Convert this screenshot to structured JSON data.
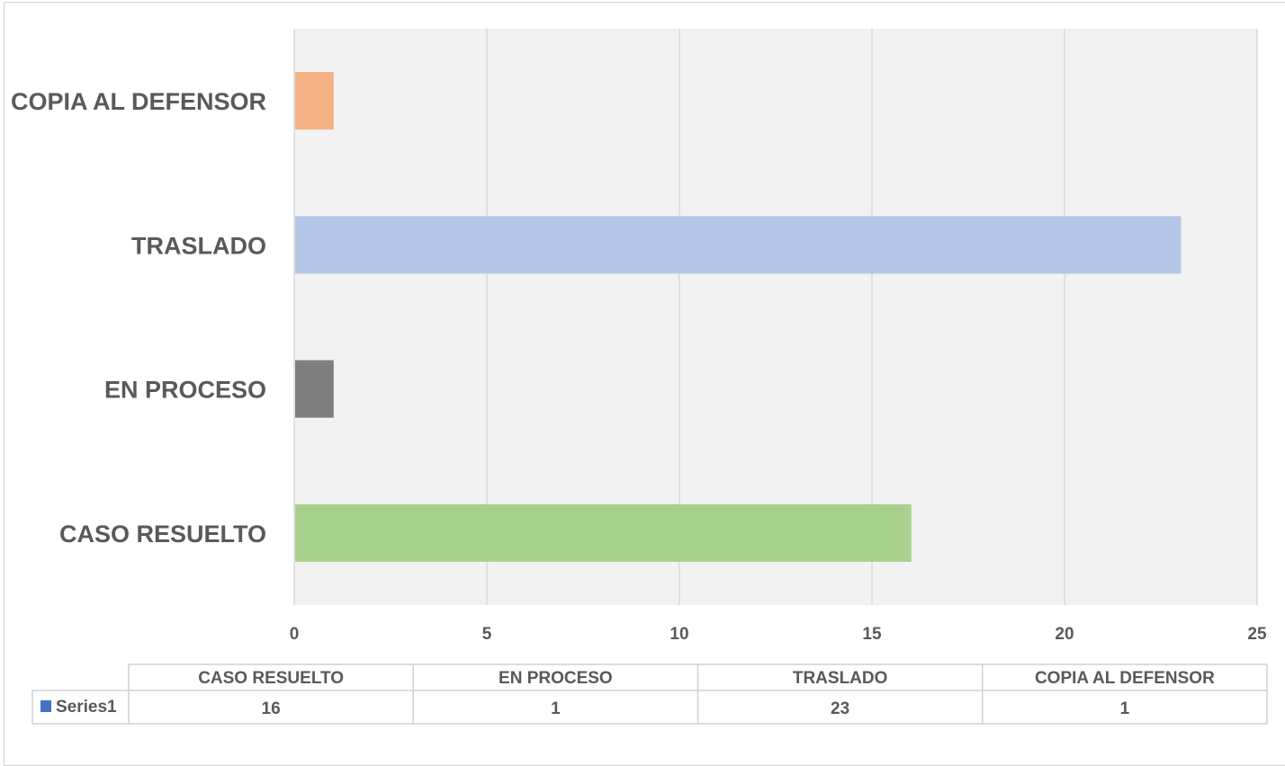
{
  "chart_data": {
    "type": "bar",
    "orientation": "horizontal",
    "categories": [
      "CASO RESUELTO",
      "EN PROCESO",
      "TRASLADO",
      "COPIA AL DEFENSOR"
    ],
    "series": [
      {
        "name": "Series1",
        "values": [
          16,
          1,
          23,
          1
        ]
      }
    ],
    "bar_colors": [
      "#a9d18e",
      "#7f7f7f",
      "#b4c7e7",
      "#f4b183"
    ],
    "xlim": [
      0,
      25
    ],
    "x_ticks": [
      0,
      5,
      10,
      15,
      20,
      25
    ],
    "grid": true,
    "plot_background": "#f2f2f2",
    "legend_color": "#4472c4",
    "data_table": true,
    "title": "",
    "xlabel": "",
    "ylabel": ""
  }
}
